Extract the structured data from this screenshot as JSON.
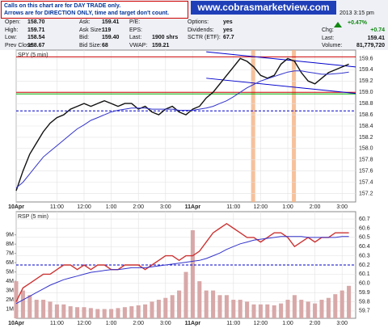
{
  "header": {
    "cols": [
      [
        [
          "Open:",
          "158.70"
        ],
        [
          "High:",
          "159.71"
        ],
        [
          "Low:",
          "158.54"
        ],
        [
          "Prev Close:",
          "158.67"
        ]
      ],
      [
        [
          "Ask:",
          "159.41"
        ],
        [
          "Ask Size:",
          "119"
        ],
        [
          "Bid:",
          "159.40"
        ],
        [
          "Bid Size:",
          "68"
        ]
      ],
      [
        [
          "P/E:"
        ],
        [
          "EPS:"
        ],
        [
          "Last:",
          "1900 shrs"
        ],
        [
          "VWAP:",
          "159.21"
        ]
      ],
      [
        [
          "Options:",
          "yes"
        ],
        [
          "Dividends:",
          "yes"
        ],
        [
          "SCTR (ETF):",
          "67.7"
        ]
      ]
    ],
    "time": "2013 3:15 pm",
    "change_pct": "+0.47%",
    "right": [
      [
        "Chg:",
        "+0.74"
      ],
      [
        "Last:",
        "159.41"
      ],
      [
        "Volume:",
        "81,779,720"
      ]
    ]
  },
  "notice": {
    "lines": [
      "Calls on this chart are for DAY TRADE only.",
      "Arrows are for DIRECTION ONLY, time and target don't count."
    ],
    "banner": "www.cobrasmarketview.com"
  },
  "chart_data": [
    {
      "type": "line",
      "title": "SPY (5 min)",
      "x": [
        0,
        1,
        2,
        3,
        4,
        5,
        6,
        7,
        8,
        9,
        10,
        11,
        12,
        13,
        14,
        15,
        16,
        17,
        18,
        19,
        20,
        21,
        22,
        23,
        24,
        25,
        26,
        27,
        28,
        29,
        30,
        31,
        32,
        33,
        34,
        35,
        36,
        37,
        38,
        39,
        40,
        41,
        42,
        43,
        44,
        45,
        46,
        47,
        48,
        49
      ],
      "series": [
        {
          "color": "#111111",
          "values": [
            157.25,
            157.6,
            157.9,
            158.1,
            158.3,
            158.45,
            158.55,
            158.6,
            158.7,
            158.75,
            158.8,
            158.75,
            158.8,
            158.85,
            158.8,
            158.75,
            158.8,
            158.8,
            158.7,
            158.75,
            158.65,
            158.6,
            158.7,
            158.75,
            158.65,
            158.6,
            158.7,
            158.75,
            158.9,
            159.0,
            159.15,
            159.3,
            159.45,
            159.6,
            159.55,
            159.45,
            159.3,
            159.25,
            159.3,
            159.5,
            159.6,
            159.55,
            159.35,
            159.2,
            159.15,
            159.25,
            159.35,
            159.4,
            159.45,
            159.5
          ]
        },
        {
          "color": "#3333cc",
          "values": [
            157.3,
            157.4,
            157.55,
            157.7,
            157.85,
            157.95,
            158.05,
            158.15,
            158.25,
            158.35,
            158.42,
            158.5,
            158.55,
            158.6,
            158.65,
            158.68,
            158.7,
            158.72,
            158.72,
            158.72,
            158.7,
            158.7,
            158.7,
            158.7,
            158.68,
            158.68,
            158.68,
            158.7,
            158.72,
            158.75,
            158.8,
            158.85,
            158.92,
            159.0,
            159.08,
            159.14,
            159.2,
            159.24,
            159.28,
            159.32,
            159.36,
            159.38,
            159.38,
            159.36,
            159.34,
            159.32,
            159.32,
            159.33,
            159.34,
            159.36
          ]
        }
      ],
      "xlim": [
        0,
        50
      ],
      "ylim": [
        157.05,
        159.75
      ],
      "xticks": [
        {
          "value": 0,
          "label": "10Apr"
        },
        {
          "value": 6,
          "label": "11:00"
        },
        {
          "value": 10,
          "label": "12:00"
        },
        {
          "value": 14,
          "label": "1:00"
        },
        {
          "value": 18,
          "label": "2:00"
        },
        {
          "value": 22,
          "label": "3:00"
        },
        {
          "value": 26,
          "label": "11Apr"
        },
        {
          "value": 32,
          "label": "11:00"
        },
        {
          "value": 36,
          "label": "12:00"
        },
        {
          "value": 40,
          "label": "1:00"
        },
        {
          "value": 44,
          "label": "2:00"
        },
        {
          "value": 48,
          "label": "3:00"
        }
      ],
      "yticks": [
        157.2,
        157.4,
        157.6,
        157.8,
        {
          "value": 158,
          "label": "158.0"
        },
        158.2,
        158.4,
        158.6,
        158.8,
        {
          "value": 159,
          "label": "159.0"
        },
        159.2,
        159.4,
        159.6
      ],
      "grid": true,
      "hlines": [
        {
          "value": 159.63,
          "color": "#cc0000"
        },
        {
          "value": 159.0,
          "color": "#cc0000"
        },
        {
          "value": 158.97,
          "color": "#00aa00"
        },
        {
          "value": 158.67,
          "color": "#0000cc",
          "dash": true
        }
      ],
      "trendlines": [
        {
          "x": [
            28,
            50
          ],
          "y": [
            159.72,
            159.45
          ],
          "color": "#0000cc"
        },
        {
          "x": [
            28,
            50
          ],
          "y": [
            159.25,
            158.98
          ],
          "color": "#0000cc"
        }
      ],
      "highlights": [
        {
          "x": [
            34.6,
            35.2
          ],
          "color": "#f4b183"
        },
        {
          "x": [
            40.6,
            41.2
          ],
          "color": "#f4b183"
        }
      ]
    },
    {
      "type": "line",
      "title": "RSP (5 min)",
      "x": [
        0,
        1,
        2,
        3,
        4,
        5,
        6,
        7,
        8,
        9,
        10,
        11,
        12,
        13,
        14,
        15,
        16,
        17,
        18,
        19,
        20,
        21,
        22,
        23,
        24,
        25,
        26,
        27,
        28,
        29,
        30,
        31,
        32,
        33,
        34,
        35,
        36,
        37,
        38,
        39,
        40,
        41,
        42,
        43,
        44,
        45,
        46,
        47,
        48,
        49
      ],
      "series": [
        {
          "color": "#cc3333",
          "values": [
            59.8,
            59.95,
            60.0,
            60.05,
            60.1,
            60.1,
            60.15,
            60.2,
            60.2,
            60.15,
            60.2,
            60.15,
            60.2,
            60.2,
            60.15,
            60.15,
            60.2,
            60.2,
            60.2,
            60.15,
            60.2,
            60.25,
            60.3,
            60.3,
            60.25,
            60.3,
            60.3,
            60.35,
            60.45,
            60.55,
            60.6,
            60.65,
            60.6,
            60.55,
            60.5,
            60.5,
            60.45,
            60.5,
            60.55,
            60.55,
            60.5,
            60.4,
            60.45,
            60.5,
            60.45,
            60.5,
            60.5,
            60.55,
            60.55,
            60.55
          ]
        },
        {
          "color": "#3333cc",
          "values": [
            59.78,
            59.82,
            59.86,
            59.9,
            59.94,
            59.98,
            60.01,
            60.04,
            60.06,
            60.08,
            60.1,
            60.12,
            60.13,
            60.14,
            60.15,
            60.15,
            60.16,
            60.17,
            60.17,
            60.17,
            60.18,
            60.19,
            60.2,
            60.21,
            60.22,
            60.23,
            60.24,
            60.25,
            60.27,
            60.3,
            60.33,
            60.37,
            60.4,
            60.43,
            60.45,
            60.47,
            60.48,
            60.49,
            60.5,
            60.51,
            60.51,
            60.51,
            60.51,
            60.5,
            60.5,
            60.5,
            60.5,
            60.5,
            60.51,
            60.51
          ]
        },
        {
          "color": "#d8a8a8",
          "axis": "y2",
          "kind": "bar",
          "values": [
            4,
            3,
            2.5,
            2,
            2,
            1.8,
            1.5,
            1.5,
            1.3,
            1.2,
            1.2,
            1.1,
            1,
            1,
            1,
            1.1,
            1.2,
            1.3,
            1.4,
            1.5,
            1.8,
            2,
            2.2,
            2.5,
            3,
            5,
            9.5,
            4,
            3,
            3,
            2.5,
            2.5,
            2,
            2,
            1.8,
            1.5,
            1.5,
            1.5,
            1.4,
            1.6,
            2,
            2.5,
            2,
            1.8,
            1.6,
            2,
            2.2,
            2.6,
            3,
            3.5
          ]
        }
      ],
      "xlim": [
        0,
        50
      ],
      "ylim": [
        59.62,
        60.78
      ],
      "y2lim": [
        0,
        11.5
      ],
      "xticks": [
        {
          "value": 0,
          "label": "10Apr"
        },
        {
          "value": 6,
          "label": "11:00"
        },
        {
          "value": 10,
          "label": "12:00"
        },
        {
          "value": 14,
          "label": "1:00"
        },
        {
          "value": 18,
          "label": "2:00"
        },
        {
          "value": 22,
          "label": "3:00"
        },
        {
          "value": 26,
          "label": "11Apr"
        },
        {
          "value": 32,
          "label": "11:00"
        },
        {
          "value": 36,
          "label": "12:00"
        },
        {
          "value": 40,
          "label": "1:00"
        },
        {
          "value": 44,
          "label": "2:00"
        },
        {
          "value": 48,
          "label": "3:00"
        }
      ],
      "yticks": [
        59.7,
        59.8,
        59.9,
        {
          "value": 60,
          "label": "60.0"
        },
        60.1,
        60.2,
        60.3,
        60.4,
        60.5,
        60.6,
        60.7
      ],
      "y2ticks": [
        {
          "value": 1,
          "label": "1M"
        },
        {
          "value": 2,
          "label": "2M"
        },
        {
          "value": 3,
          "label": "3M"
        },
        {
          "value": 4,
          "label": "4M"
        },
        {
          "value": 5,
          "label": "5M"
        },
        {
          "value": 6,
          "label": "6M"
        },
        {
          "value": 7,
          "label": "7M"
        },
        {
          "value": 8,
          "label": "8M"
        },
        {
          "value": 9,
          "label": "9M"
        }
      ],
      "grid": true,
      "hlines": [
        {
          "value": 60.2,
          "color": "#0000cc",
          "dash": true
        }
      ]
    }
  ]
}
